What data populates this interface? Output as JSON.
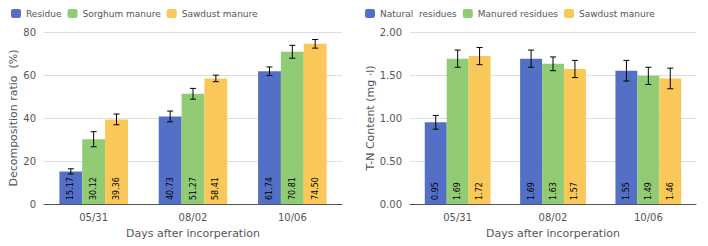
{
  "chart_data": [
    {
      "type": "bar",
      "categories": [
        "05/31",
        "08/02",
        "10/06"
      ],
      "series": [
        {
          "name": "Residue",
          "values": [
            15.17,
            40.73,
            61.74
          ],
          "value_labels": [
            "15.17",
            "40.73",
            "61.74"
          ],
          "errors": [
            1.2,
            2.5,
            2.0
          ]
        },
        {
          "name": "Sorghum manure",
          "values": [
            30.12,
            51.27,
            70.81
          ],
          "value_labels": [
            "30.12",
            "51.27",
            "70.81"
          ],
          "errors": [
            3.5,
            2.5,
            3.0
          ]
        },
        {
          "name": "Sawdust manure",
          "values": [
            39.36,
            58.41,
            74.5
          ],
          "value_labels": [
            "39.36",
            "58.41",
            "74.50"
          ],
          "errors": [
            2.5,
            1.5,
            2.0
          ]
        }
      ],
      "xlabel": "Days after incorperation",
      "ylabel": "Decomposition ratio  (%)",
      "ylim": [
        0,
        80
      ],
      "yticks": [
        0,
        20,
        40,
        60,
        80
      ],
      "grid": true,
      "legend": "upper left",
      "data_labels": true
    },
    {
      "type": "bar",
      "categories": [
        "05/31",
        "08/02",
        "10/06"
      ],
      "series": [
        {
          "name": "Natural  residues",
          "values": [
            0.95,
            1.69,
            1.55
          ],
          "value_labels": [
            "0.95",
            "1.69",
            "1.55"
          ],
          "errors": [
            0.08,
            0.1,
            0.12
          ]
        },
        {
          "name": "Manured residues",
          "values": [
            1.69,
            1.63,
            1.49
          ],
          "value_labels": [
            "1.69",
            "1.63",
            "1.49"
          ],
          "errors": [
            0.1,
            0.08,
            0.1
          ]
        },
        {
          "name": "Sawdust manure",
          "values": [
            1.72,
            1.57,
            1.46
          ],
          "value_labels": [
            "1.72",
            "1.57",
            "1.46"
          ],
          "errors": [
            0.1,
            0.1,
            0.12
          ]
        }
      ],
      "xlabel": "Days after incorperation",
      "ylabel": "T-N Content (mg ·l)",
      "ylim": [
        0,
        2
      ],
      "yticks": [
        {
          "value": 0,
          "label": "0.00"
        },
        {
          "value": 0.5,
          "label": "0.50"
        },
        {
          "value": 1,
          "label": "1.00"
        },
        {
          "value": 1.5,
          "label": "1.50"
        },
        {
          "value": 2,
          "label": "2.00"
        }
      ],
      "grid": true,
      "legend": "upper left",
      "data_labels": true
    }
  ]
}
